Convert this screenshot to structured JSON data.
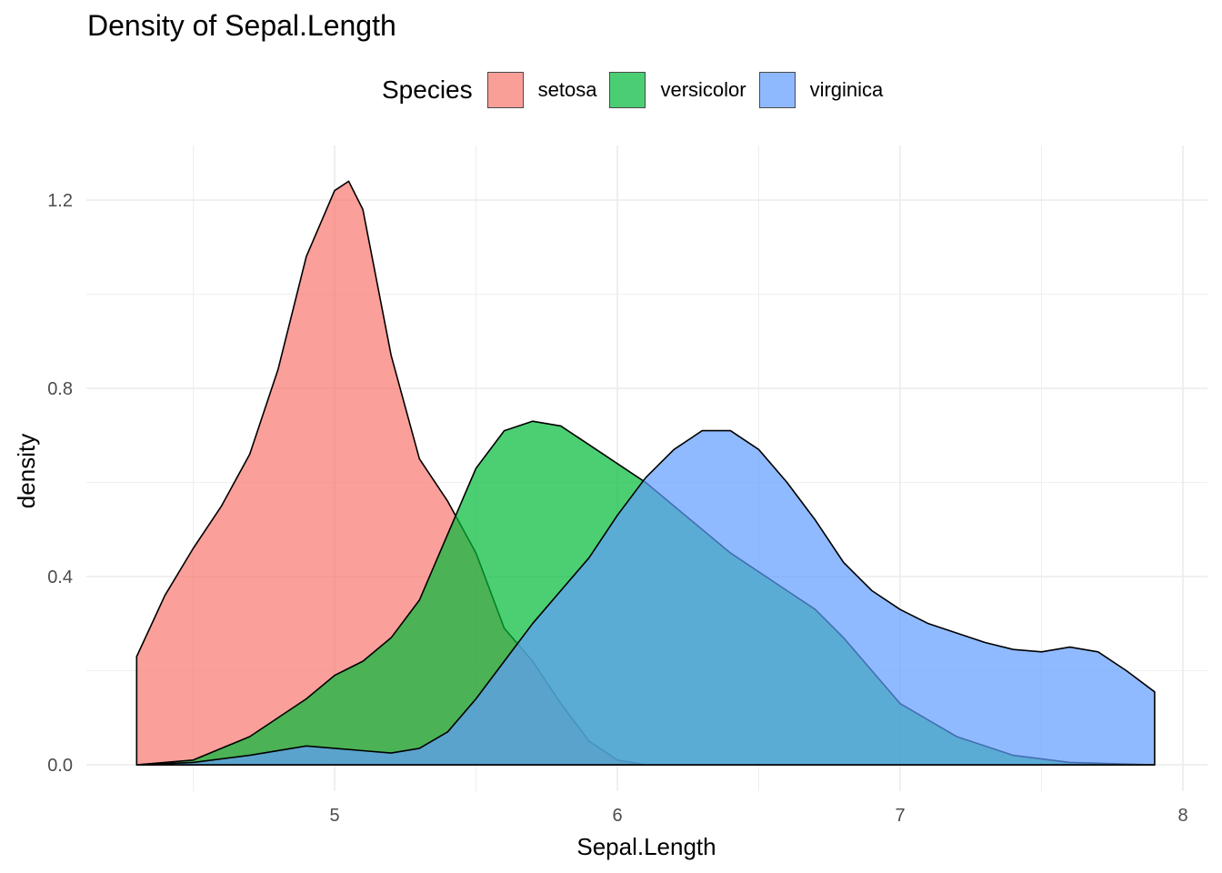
{
  "chart_data": {
    "type": "area",
    "title": "Density of Sepal.Length",
    "xlabel": "Sepal.Length",
    "ylabel": "density",
    "xlim": [
      4.3,
      7.9
    ],
    "ylim": [
      0,
      1.24
    ],
    "x_ticks": [
      5,
      6,
      7,
      8
    ],
    "y_ticks": [
      0.0,
      0.4,
      0.8,
      1.2
    ],
    "x_tick_labels": [
      "5",
      "6",
      "7",
      "8"
    ],
    "y_tick_labels": [
      "0.0",
      "0.4",
      "0.8",
      "1.2"
    ],
    "grid": true,
    "legend": {
      "title": "Species",
      "placement": "top"
    },
    "series": [
      {
        "name": "setosa",
        "color": "#F8766D",
        "x": [
          4.3,
          4.4,
          4.5,
          4.6,
          4.7,
          4.8,
          4.9,
          5.0,
          5.05,
          5.1,
          5.2,
          5.3,
          5.4,
          5.5,
          5.6,
          5.7,
          5.8,
          5.9,
          6.0,
          6.1,
          7.9
        ],
        "y": [
          0.23,
          0.36,
          0.46,
          0.55,
          0.66,
          0.84,
          1.08,
          1.22,
          1.24,
          1.18,
          0.87,
          0.65,
          0.56,
          0.45,
          0.29,
          0.22,
          0.13,
          0.05,
          0.01,
          0.0,
          0.0
        ]
      },
      {
        "name": "versicolor",
        "color": "#00BA38",
        "x": [
          4.3,
          4.5,
          4.7,
          4.9,
          5.0,
          5.1,
          5.2,
          5.3,
          5.4,
          5.5,
          5.6,
          5.7,
          5.8,
          5.9,
          6.0,
          6.1,
          6.2,
          6.3,
          6.4,
          6.5,
          6.6,
          6.7,
          6.8,
          6.9,
          7.0,
          7.2,
          7.4,
          7.6,
          7.9
        ],
        "y": [
          0.0,
          0.01,
          0.06,
          0.14,
          0.19,
          0.22,
          0.27,
          0.35,
          0.49,
          0.63,
          0.71,
          0.73,
          0.72,
          0.68,
          0.64,
          0.6,
          0.55,
          0.5,
          0.45,
          0.41,
          0.37,
          0.33,
          0.27,
          0.2,
          0.13,
          0.06,
          0.02,
          0.005,
          0.0
        ]
      },
      {
        "name": "virginica",
        "color": "#619CFF",
        "x": [
          4.3,
          4.5,
          4.7,
          4.9,
          5.1,
          5.2,
          5.3,
          5.4,
          5.5,
          5.6,
          5.7,
          5.8,
          5.9,
          6.0,
          6.1,
          6.2,
          6.3,
          6.4,
          6.5,
          6.6,
          6.7,
          6.8,
          6.9,
          7.0,
          7.1,
          7.2,
          7.3,
          7.4,
          7.5,
          7.6,
          7.7,
          7.8,
          7.9
        ],
        "y": [
          0.0,
          0.005,
          0.02,
          0.04,
          0.03,
          0.025,
          0.035,
          0.07,
          0.14,
          0.22,
          0.3,
          0.37,
          0.44,
          0.53,
          0.61,
          0.67,
          0.71,
          0.71,
          0.67,
          0.6,
          0.52,
          0.43,
          0.37,
          0.33,
          0.3,
          0.28,
          0.26,
          0.245,
          0.24,
          0.25,
          0.24,
          0.2,
          0.155
        ]
      }
    ]
  }
}
